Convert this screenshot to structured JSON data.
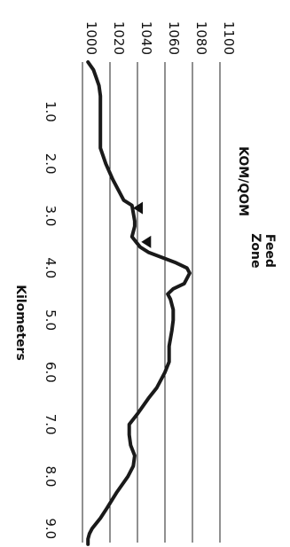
{
  "chart_data": {
    "type": "line",
    "title": "",
    "xlabel": "Kilometers",
    "ylabel": "",
    "x_ticks": [
      "1.0",
      "2.0",
      "3.0",
      "4.0",
      "5.0",
      "6.0",
      "7.0",
      "8.0",
      "9.0"
    ],
    "y_ticks": [
      "1000",
      "1020",
      "1040",
      "1060",
      "1080",
      "1100"
    ],
    "xlim": [
      0.05,
      9.3
    ],
    "ylim": [
      1000,
      1100
    ],
    "grid": true,
    "series": [
      {
        "name": "",
        "x": [
          0.05,
          0.2,
          0.35,
          0.5,
          0.7,
          1.0,
          1.5,
          1.7,
          2.0,
          2.3,
          2.5,
          2.7,
          2.8,
          3.1,
          3.2,
          3.4,
          3.5,
          3.6,
          3.7,
          3.8,
          3.9,
          4.0,
          4.1,
          4.3,
          4.4,
          4.5,
          4.6,
          4.8,
          5.0,
          5.2,
          5.5,
          5.8,
          6.0,
          6.3,
          6.5,
          6.8,
          7.0,
          7.2,
          7.4,
          7.6,
          7.8,
          8.0,
          8.3,
          8.6,
          8.8,
          9.0,
          9.1,
          9.2,
          9.3
        ],
        "y": [
          1004,
          1008,
          1010,
          1012,
          1013,
          1013,
          1013,
          1013,
          1017,
          1022,
          1026,
          1030,
          1036,
          1038,
          1038,
          1036,
          1039,
          1042,
          1048,
          1058,
          1068,
          1076,
          1078,
          1074,
          1066,
          1062,
          1064,
          1066,
          1066,
          1065,
          1063,
          1063,
          1060,
          1054,
          1048,
          1040,
          1034,
          1034,
          1035,
          1038,
          1037,
          1033,
          1025,
          1018,
          1013,
          1007,
          1005,
          1004,
          1004
        ]
      }
    ],
    "annotations": [
      {
        "text": "KOM/QOM",
        "x": 2.85,
        "y": 1040
      },
      {
        "text": "Feed Zone",
        "x": 3.5,
        "y": 1046
      }
    ]
  }
}
